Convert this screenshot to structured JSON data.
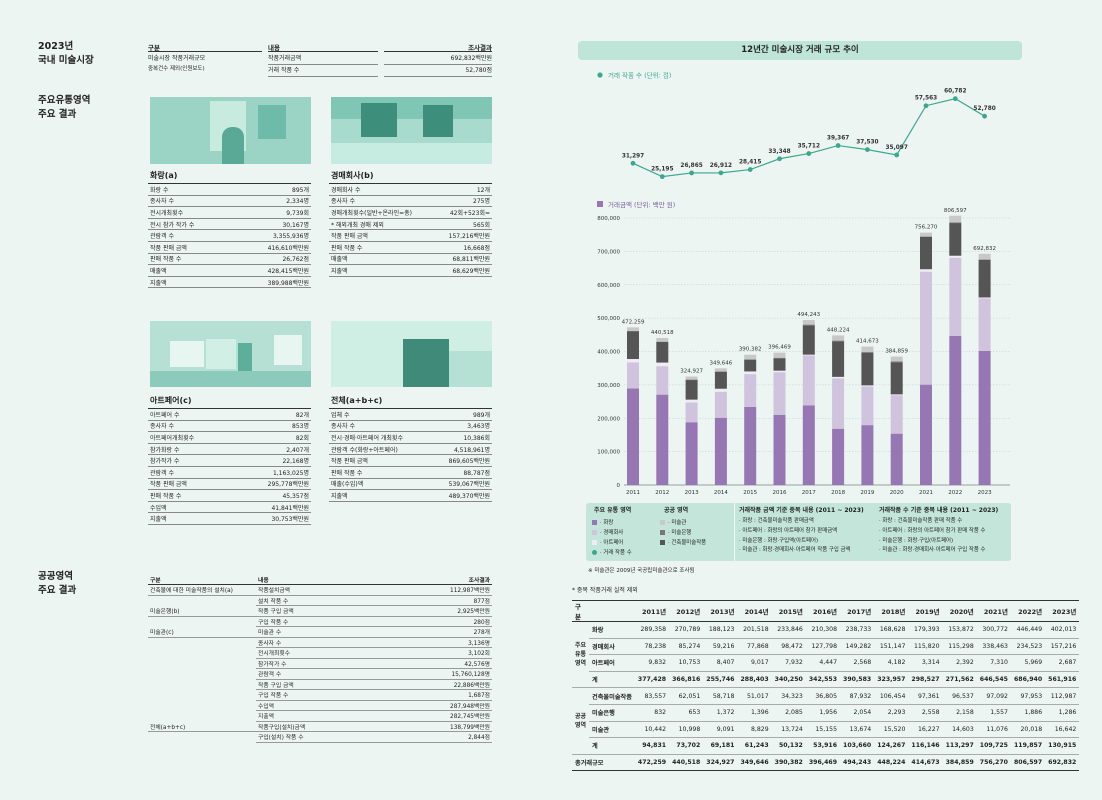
{
  "domestic": {
    "title_year": "2023년",
    "title_sub": "국내 미술시장",
    "col_head": [
      "구분",
      "내용",
      "조사결과"
    ],
    "row1_label": "미술시장 작품거래규모",
    "row1_note": "중복건수 제외(인원보도)",
    "rows": [
      {
        "content": "작품거래금액",
        "value": "692,832백만원"
      },
      {
        "content": "거래 작품 수",
        "value": "52,780점"
      }
    ]
  },
  "main_results": {
    "title_1": "주요유통영역",
    "title_2": "주요 결과"
  },
  "gallery": {
    "title": "화랑(a)",
    "rows": [
      {
        "k": "화랑 수",
        "v": "895개"
      },
      {
        "k": "종사자 수",
        "v": "2,334명"
      },
      {
        "k": "전시개최횟수",
        "v": "9,739회"
      },
      {
        "k": "전시 참가 작가 수",
        "v": "30,167명"
      },
      {
        "k": "관람객 수",
        "v": "3,355,936명"
      },
      {
        "k": "작품 판매 금액",
        "v": "416,610백만원"
      },
      {
        "k": "판매 작품 수",
        "v": "26,762점"
      },
      {
        "k": "매출액",
        "v": "428,415백만원"
      },
      {
        "k": "지출액",
        "v": "389,988백만원"
      }
    ]
  },
  "auction": {
    "title": "경매회사(b)",
    "rows": [
      {
        "k": "경매회사 수",
        "v": "12개"
      },
      {
        "k": "종사자 수",
        "v": "275명"
      },
      {
        "k": "경매개최횟수(일반+온라인=총)",
        "v": "42회+523회="
      },
      {
        "k": "* 해외개최 경매 제외",
        "v": "565회"
      },
      {
        "k": "작품 판매 금액",
        "v": "157,216백만원"
      },
      {
        "k": "판매 작품 수",
        "v": "16,668점"
      },
      {
        "k": "매출액",
        "v": "68,811백만원"
      },
      {
        "k": "지출액",
        "v": "68,629백만원"
      }
    ]
  },
  "artfair": {
    "title": "아트페어(c)",
    "rows": [
      {
        "k": "아트페어 수",
        "v": "82개"
      },
      {
        "k": "종사자 수",
        "v": "853명"
      },
      {
        "k": "아트페어개최횟수",
        "v": "82회"
      },
      {
        "k": "참가화랑 수",
        "v": "2,407개"
      },
      {
        "k": "참가작가 수",
        "v": "22,168명"
      },
      {
        "k": "관람객 수",
        "v": "1,163,025명"
      },
      {
        "k": "작품 판매 금액",
        "v": "295,778백만원"
      },
      {
        "k": "판매 작품 수",
        "v": "45,357점"
      },
      {
        "k": "수입액",
        "v": "41,841백만원"
      },
      {
        "k": "지출액",
        "v": "30,753백만원"
      }
    ]
  },
  "total": {
    "title": "전체(a+b+c)",
    "rows": [
      {
        "k": "업체 수",
        "v": "989개"
      },
      {
        "k": "종사자 수",
        "v": "3,463명"
      },
      {
        "k": "전시·경매·아트페어 개최횟수",
        "v": "10,386회"
      },
      {
        "k": "관람객 수(화랑+아트페어)",
        "v": "4,518,961명"
      },
      {
        "k": "작품 판매 금액",
        "v": "869,605백만원"
      },
      {
        "k": "판매 작품 수",
        "v": "88,787점"
      },
      {
        "k": "매출(수입)액",
        "v": "539,067백만원"
      },
      {
        "k": "지출액",
        "v": "489,370백만원"
      }
    ]
  },
  "public": {
    "title_1": "공공영역",
    "title_2": "주요 결과",
    "col_head": [
      "구분",
      "내용",
      "조사결과"
    ],
    "rows": [
      {
        "g": "건축물에 대한 미술작품의 설치(a)",
        "k": "작품설치금액",
        "v": "112,987백만원"
      },
      {
        "g": "",
        "k": "설치 작품 수",
        "v": "877점"
      },
      {
        "g": "미술은행(b)",
        "k": "작품 구입 금액",
        "v": "2,925백만원"
      },
      {
        "g": "",
        "k": "구입 작품 수",
        "v": "280점"
      },
      {
        "g": "미술관(c)",
        "k": "미술관 수",
        "v": "278개"
      },
      {
        "g": "",
        "k": "종사자 수",
        "v": "3,136명"
      },
      {
        "g": "",
        "k": "전시개최횟수",
        "v": "3,102회"
      },
      {
        "g": "",
        "k": "참가작가 수",
        "v": "42,576명"
      },
      {
        "g": "",
        "k": "관람객 수",
        "v": "15,760,128명"
      },
      {
        "g": "",
        "k": "작품 구입 금액",
        "v": "22,886백만원"
      },
      {
        "g": "",
        "k": "구입 작품 수",
        "v": "1,687점"
      },
      {
        "g": "",
        "k": "수입액",
        "v": "287,948백만원"
      },
      {
        "g": "",
        "k": "지출액",
        "v": "282,745백만원"
      },
      {
        "g": "전체(a+b+c)",
        "k": "작품구입(설치)금액",
        "v": "138,799백만원"
      },
      {
        "g": "",
        "k": "구입(설치) 작품 수",
        "v": "2,844점"
      }
    ]
  },
  "chart_banner": "12년간 미술시장 거래 규모 추이",
  "chart_data": [
    {
      "type": "line",
      "legend": "거래 작품 수 (단위: 점)",
      "x": [
        "2011",
        "2012",
        "2013",
        "2014",
        "2015",
        "2016",
        "2017",
        "2018",
        "2019",
        "2020",
        "2021",
        "2022",
        "2023"
      ],
      "values": [
        31297,
        25195,
        26865,
        26912,
        28415,
        33348,
        35712,
        39367,
        37530,
        35097,
        57563,
        60782,
        52780
      ],
      "labels": [
        "31,297",
        "25,195",
        "26,865",
        "26,912",
        "28,415",
        "33,348",
        "35,712",
        "39,367",
        "37,530",
        "35,097",
        "57,563",
        "60,782",
        "52,780"
      ],
      "color": "#3aa88f"
    },
    {
      "type": "bar",
      "legend": "거래금액 (단위: 백만 원)",
      "categories": [
        "2011",
        "2012",
        "2013",
        "2014",
        "2015",
        "2016",
        "2017",
        "2018",
        "2019",
        "2020",
        "2021",
        "2022",
        "2023"
      ],
      "ylim": [
        0,
        800000
      ],
      "yticks": [
        "0",
        "100,000",
        "200,000",
        "300,000",
        "400,000",
        "500,000",
        "600,000",
        "700,000",
        "800,000"
      ],
      "ytick_values": [
        0,
        100000,
        200000,
        300000,
        400000,
        500000,
        600000,
        700000,
        800000
      ],
      "series": [
        {
          "name": "화랑",
          "color": "#9677b3",
          "values": [
            289358,
            270789,
            188123,
            201518,
            233846,
            210308,
            238733,
            168628,
            179393,
            153872,
            300772,
            446449,
            402013
          ]
        },
        {
          "name": "경매회사",
          "color": "#cfc3de",
          "values": [
            78238,
            85274,
            59216,
            77868,
            98472,
            127798,
            149282,
            151147,
            115820,
            115298,
            338463,
            234523,
            157216
          ]
        },
        {
          "name": "아트페어",
          "color": "#f0ecf4",
          "values": [
            9832,
            10753,
            8407,
            9017,
            7932,
            4447,
            2568,
            4182,
            3314,
            2392,
            7310,
            5969,
            2687
          ]
        },
        {
          "name": "건축물미술작품",
          "color": "#555555",
          "values": [
            83557,
            62051,
            58718,
            51017,
            34323,
            36805,
            87932,
            106454,
            97361,
            96537,
            97092,
            97953,
            112987
          ]
        },
        {
          "name": "미술은행",
          "color": "#777777",
          "values": [
            832,
            653,
            1372,
            1396,
            2085,
            1956,
            2054,
            2293,
            2558,
            2158,
            1557,
            1886,
            1286
          ]
        },
        {
          "name": "미술관",
          "color": "#c8c8c8",
          "values": [
            10442,
            10998,
            9091,
            8829,
            13724,
            15155,
            13674,
            15520,
            16227,
            14603,
            11076,
            20018,
            16642
          ]
        }
      ],
      "totals": [
        "472,259",
        "440,518",
        "324,927",
        "349,646",
        "390,382",
        "396,469",
        "494,243",
        "448,224",
        "414,673",
        "384,859",
        "756,270",
        "806,597",
        "692,832"
      ],
      "total_values": [
        472259,
        440518,
        324927,
        349646,
        390382,
        396469,
        494243,
        448224,
        414673,
        384859,
        756270,
        806597,
        692832
      ]
    }
  ],
  "legend_box": {
    "dist_head": "주요 유통 영역",
    "pub_head": "공공 영역",
    "dist_items": [
      "· 화랑",
      "· 경매회사",
      "· 아트페어",
      "· 거래 작품 수"
    ],
    "pub_items": [
      "· 미술관",
      "· 미술은행",
      "· 건축물미술작품"
    ],
    "amt_head": "거래작품 금액 기준 중복 내용 (2011 ~ 2023)",
    "amt_items": [
      "· 화랑 : 건축물미술작품 판매금액",
      "· 아트페어 : 화랑의 아트페어 참가 판매금액",
      "· 미술은행 : 화랑·구입액(아트페어)",
      "· 미술관 : 화랑·경매회사·아트페어 작품 구입 금액"
    ],
    "cnt_head": "거래작품 수 기준 중복 내용 (2011 ~ 2023)",
    "cnt_items": [
      "· 화랑 : 건축물미술작품 판매 작품 수",
      "· 아트페어 : 화랑의 아트페어 참가 판매 작품 수",
      "· 미술은행 : 화랑·구입(아트페어)",
      "· 미술관 : 화랑·경매회사·아트페어 구입 작품 수"
    ]
  },
  "note1": "※ 미술관은 2009년 국공립미술관으로 조사됨",
  "note2": "* 중복 작품거래 실적 제외",
  "bottom_table": {
    "headers": [
      "구분",
      "",
      "2011년",
      "2012년",
      "2013년",
      "2014년",
      "2015년",
      "2016년",
      "2017년",
      "2018년",
      "2019년",
      "2020년",
      "2021년",
      "2022년",
      "2023년"
    ],
    "group1": "주요\n유통\n영역",
    "group2": "공공\n영역",
    "rows": [
      {
        "label": "화랑",
        "vals": [
          "289,358",
          "270,789",
          "188,123",
          "201,518",
          "233,846",
          "210,308",
          "238,733",
          "168,628",
          "179,393",
          "153,872",
          "300,772",
          "446,449",
          "402,013"
        ]
      },
      {
        "label": "경매회사",
        "vals": [
          "78,238",
          "85,274",
          "59,216",
          "77,868",
          "98,472",
          "127,798",
          "149,282",
          "151,147",
          "115,820",
          "115,298",
          "338,463",
          "234,523",
          "157,216"
        ]
      },
      {
        "label": "아트페어",
        "vals": [
          "9,832",
          "10,753",
          "8,407",
          "9,017",
          "7,932",
          "4,447",
          "2,568",
          "4,182",
          "3,314",
          "2,392",
          "7,310",
          "5,969",
          "2,687"
        ]
      },
      {
        "label": "계",
        "vals": [
          "377,428",
          "366,816",
          "255,746",
          "288,403",
          "340,250",
          "342,553",
          "390,583",
          "323,957",
          "298,527",
          "271,562",
          "646,545",
          "686,940",
          "561,916"
        ]
      },
      {
        "label": "건축물미술작품",
        "vals": [
          "83,557",
          "62,051",
          "58,718",
          "51,017",
          "34,323",
          "36,805",
          "87,932",
          "106,454",
          "97,361",
          "96,537",
          "97,092",
          "97,953",
          "112,987"
        ]
      },
      {
        "label": "미술은행",
        "vals": [
          "832",
          "653",
          "1,372",
          "1,396",
          "2,085",
          "1,956",
          "2,054",
          "2,293",
          "2,558",
          "2,158",
          "1,557",
          "1,886",
          "1,286"
        ]
      },
      {
        "label": "미술관",
        "vals": [
          "10,442",
          "10,998",
          "9,091",
          "8,829",
          "13,724",
          "15,155",
          "13,674",
          "15,520",
          "16,227",
          "14,603",
          "11,076",
          "20,018",
          "16,642"
        ]
      },
      {
        "label": "계",
        "vals": [
          "94,831",
          "73,702",
          "69,181",
          "61,243",
          "50,132",
          "53,916",
          "103,660",
          "124,267",
          "116,146",
          "113,297",
          "109,725",
          "119,857",
          "130,915"
        ]
      },
      {
        "label": "총거래규모",
        "vals": [
          "472,259",
          "440,518",
          "324,927",
          "349,646",
          "390,382",
          "396,469",
          "494,243",
          "448,224",
          "414,673",
          "384,859",
          "756,270",
          "806,597",
          "692,832"
        ]
      }
    ]
  }
}
